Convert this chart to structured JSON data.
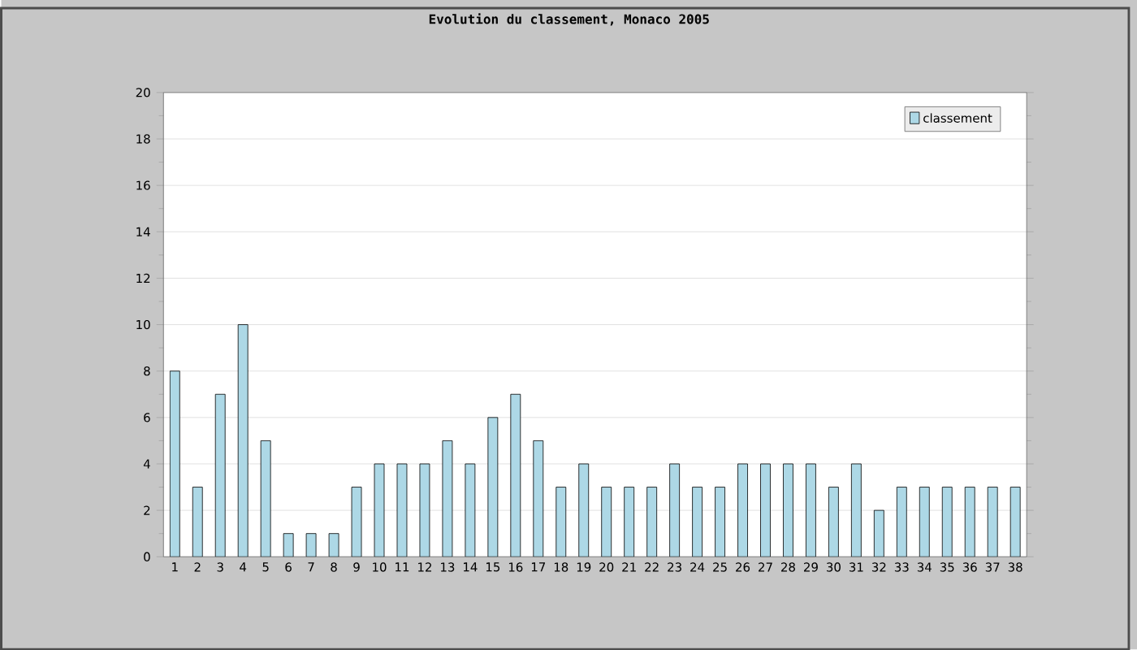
{
  "chart_data": {
    "type": "bar",
    "title": "Evolution du classement, Monaco 2005",
    "categories": [
      "1",
      "2",
      "3",
      "4",
      "5",
      "6",
      "7",
      "8",
      "9",
      "10",
      "11",
      "12",
      "13",
      "14",
      "15",
      "16",
      "17",
      "18",
      "19",
      "20",
      "21",
      "22",
      "23",
      "24",
      "25",
      "26",
      "27",
      "28",
      "29",
      "30",
      "31",
      "32",
      "33",
      "34",
      "35",
      "36",
      "37",
      "38"
    ],
    "series": [
      {
        "name": "classement",
        "color": "#add8e6",
        "values": [
          8,
          3,
          7,
          10,
          5,
          1,
          1,
          1,
          3,
          4,
          4,
          4,
          5,
          4,
          6,
          7,
          5,
          3,
          4,
          3,
          3,
          3,
          4,
          3,
          3,
          4,
          4,
          4,
          4,
          3,
          4,
          2,
          3,
          3,
          3,
          3,
          3,
          3
        ]
      }
    ],
    "ylim": [
      0,
      20
    ],
    "yticks": [
      0,
      2,
      4,
      6,
      8,
      10,
      12,
      14,
      16,
      18,
      20
    ],
    "grid": "y",
    "legend": "top right"
  }
}
